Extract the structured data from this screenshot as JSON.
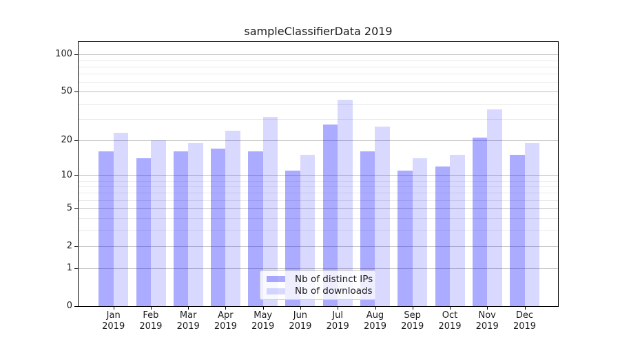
{
  "title": "sampleClassifierData 2019",
  "chart_data": {
    "type": "bar",
    "title": "sampleClassifierData 2019",
    "categories": [
      "Jan 2019",
      "Feb 2019",
      "Mar 2019",
      "Apr 2019",
      "May 2019",
      "Jun 2019",
      "Jul 2019",
      "Aug 2019",
      "Sep 2019",
      "Oct 2019",
      "Nov 2019",
      "Dec 2019"
    ],
    "months": [
      "Jan",
      "Feb",
      "Mar",
      "Apr",
      "May",
      "Jun",
      "Jul",
      "Aug",
      "Sep",
      "Oct",
      "Nov",
      "Dec"
    ],
    "year": "2019",
    "series": [
      {
        "name": "Nb of distinct IPs",
        "color": "rgba(0,0,255,0.33)",
        "values": [
          16,
          14,
          16,
          17,
          16,
          11,
          27,
          16,
          11,
          12,
          21,
          15
        ]
      },
      {
        "name": "Nb of downloads",
        "color": "rgba(0,0,255,0.15)",
        "values": [
          23,
          20,
          19,
          24,
          31,
          15,
          43,
          26,
          14,
          15,
          36,
          19
        ]
      }
    ],
    "xlabel": "",
    "ylabel": "",
    "yscale": "log1p",
    "ylim": [
      0,
      128
    ],
    "ytick_values": [
      100,
      50,
      20,
      10,
      5,
      2,
      1,
      0
    ],
    "ytick_labels": [
      "100",
      "50",
      "20",
      "10",
      "5",
      "2",
      "1",
      "0"
    ],
    "minor_grid_values": [
      3,
      4,
      6,
      7,
      8,
      9,
      30,
      40,
      60,
      70,
      80,
      90
    ],
    "grid": true,
    "legend_position": "lower center"
  },
  "legend": {
    "items": [
      {
        "label": "Nb of distinct IPs"
      },
      {
        "label": "Nb of downloads"
      }
    ]
  },
  "colors": {
    "bar_distinct_ips": "#ababff",
    "bar_downloads": "#d9d9ff",
    "major_grid": "#bdbdbd",
    "minor_grid": "#e9e9e9",
    "spine": "#000000",
    "legend_border": "#d0d0d0"
  }
}
